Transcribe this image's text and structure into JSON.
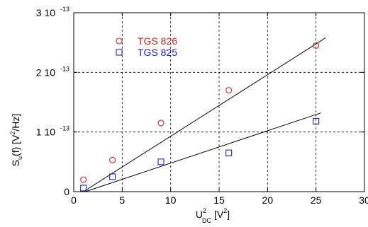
{
  "chart_data": {
    "type": "scatter",
    "title": "",
    "xlabel": {
      "base": "U",
      "sup": "2",
      "sub": "DC",
      "unit_pre": "[V",
      "unit_sup": "2",
      "unit_post": "]"
    },
    "ylabel": {
      "base": "S",
      "sub": "u",
      "mid": "(f)  [V",
      "sup": "2",
      "post": "/Hz]"
    },
    "xlim": [
      0,
      30
    ],
    "ylim": [
      0,
      3e-13
    ],
    "x_ticks": [
      "0",
      "5",
      "10",
      "15",
      "20",
      "25",
      "30"
    ],
    "y_ticks": [
      {
        "value": 0,
        "mantissa": "0",
        "exp": ""
      },
      {
        "value": 1e-13,
        "mantissa": "1 10",
        "exp": "-13"
      },
      {
        "value": 2e-13,
        "mantissa": "2 10",
        "exp": "-13"
      },
      {
        "value": 3e-13,
        "mantissa": "3 10",
        "exp": "-13"
      }
    ],
    "grid": "dashed",
    "legend_position": "top-left",
    "series": [
      {
        "name": "TGS 826",
        "marker": "circle",
        "color": "#d62020",
        "x": [
          1,
          4,
          9,
          16,
          25
        ],
        "y": [
          2e-14,
          5.3e-14,
          1.15e-13,
          1.7e-13,
          2.45e-13
        ],
        "fit": {
          "x": [
            1,
            26
          ],
          "y": [
            0.0,
            2.58e-13
          ]
        }
      },
      {
        "name": "TGS 825",
        "marker": "square",
        "color": "#2020c8",
        "x": [
          1,
          4,
          9,
          16,
          25
        ],
        "y": [
          6e-15,
          2.5e-14,
          5e-14,
          6.5e-14,
          1.18e-13
        ],
        "fit": {
          "x": [
            1.2,
            25.5
          ],
          "y": [
            0.0,
            1.32e-13
          ]
        }
      }
    ]
  }
}
